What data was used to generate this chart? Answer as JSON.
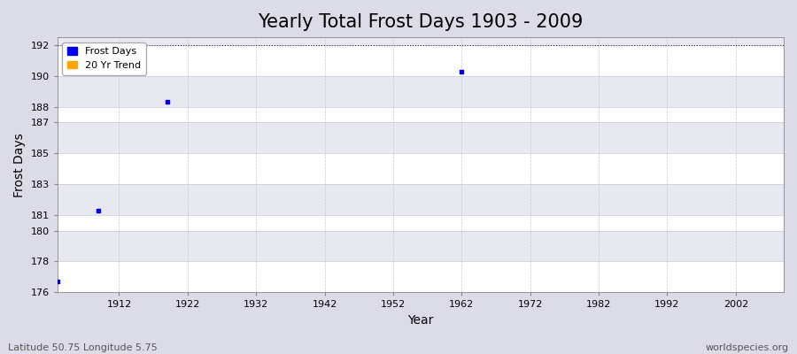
{
  "title": "Yearly Total Frost Days 1903 - 2009",
  "xlabel": "Year",
  "ylabel": "Frost Days",
  "xlim": [
    1903,
    2009
  ],
  "ylim": [
    176,
    192.5
  ],
  "yticks": [
    176,
    178,
    180,
    181,
    183,
    185,
    187,
    188,
    190,
    192
  ],
  "xticks": [
    1912,
    1922,
    1932,
    1942,
    1952,
    1962,
    1972,
    1982,
    1992,
    2002
  ],
  "hline_y": 192,
  "data_points": [
    {
      "year": 1903,
      "value": 176.7
    },
    {
      "year": 1909,
      "value": 181.3
    },
    {
      "year": 1919,
      "value": 188.3
    },
    {
      "year": 1962,
      "value": 190.3
    }
  ],
  "point_color": "#0000EE",
  "point_marker": "s",
  "point_size": 6,
  "fig_bg_color": "#DCDCE8",
  "plot_bg_color": "#E8E8F0",
  "grid_color": "#C8C8D8",
  "grid_color2": "#FFFFFF",
  "hline_color": "#333333",
  "hline_style": "dotted",
  "legend_frost_color": "#0000EE",
  "legend_trend_color": "#FFA500",
  "footer_left": "Latitude 50.75 Longitude 5.75",
  "footer_right": "worldspecies.org",
  "title_fontsize": 15,
  "axis_label_fontsize": 10,
  "tick_fontsize": 8,
  "footer_fontsize": 8
}
